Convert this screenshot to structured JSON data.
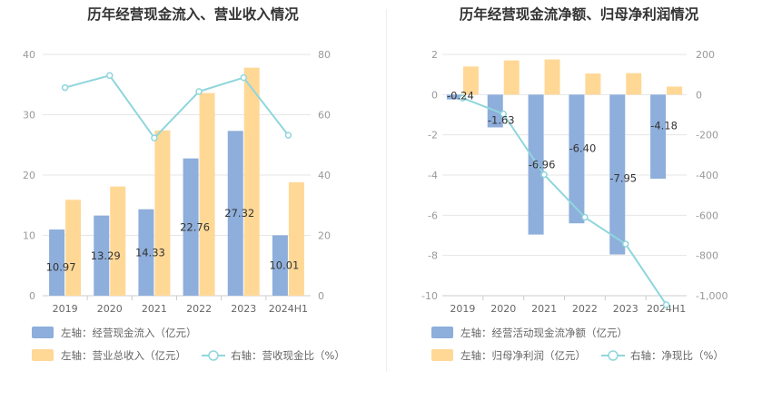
{
  "chart_data": [
    {
      "type": "bar",
      "title": "历年经营现金流入、营业收入情况",
      "categories": [
        "2019",
        "2020",
        "2021",
        "2022",
        "2023",
        "2024H1"
      ],
      "left_axis": {
        "ylim": [
          0,
          40
        ],
        "ticks": [
          0,
          10,
          20,
          30,
          40
        ]
      },
      "right_axis": {
        "ylim": [
          0,
          80
        ],
        "ticks": [
          0,
          20,
          40,
          60,
          80
        ]
      },
      "series": [
        {
          "name": "左轴：经营现金流入（亿元）",
          "type": "bar",
          "axis": "left",
          "color": "#8eaedb",
          "values": [
            10.97,
            13.29,
            14.33,
            22.76,
            27.32,
            10.01
          ],
          "labels": [
            "10.97",
            "13.29",
            "14.33",
            "22.76",
            "27.32",
            "10.01"
          ]
        },
        {
          "name": "左轴：营业总收入（亿元）",
          "type": "bar",
          "axis": "left",
          "color": "#ffd896",
          "values": [
            15.9,
            18.1,
            27.4,
            33.6,
            37.8,
            18.8
          ]
        },
        {
          "name": "右轴：营收现金比（%）",
          "type": "line",
          "axis": "right",
          "color": "#8fd6dc",
          "values": [
            69,
            73,
            52.3,
            67.7,
            72.3,
            53.2
          ]
        }
      ],
      "grid": true,
      "legend_position": "bottom-left"
    },
    {
      "type": "bar",
      "title": "历年经营现金流净额、归母净利润情况",
      "categories": [
        "2019",
        "2020",
        "2021",
        "2022",
        "2023",
        "2024H1"
      ],
      "left_axis": {
        "ylim": [
          -10,
          2
        ],
        "ticks": [
          -10,
          -8,
          -6,
          -4,
          -2,
          0,
          2
        ]
      },
      "right_axis": {
        "ylim": [
          -1000,
          200
        ],
        "ticks": [
          -1000,
          -800,
          -600,
          -400,
          -200,
          0,
          200
        ],
        "tick_labels": [
          "-1,000",
          "-800",
          "-600",
          "-400",
          "-200",
          "0",
          "200"
        ]
      },
      "series": [
        {
          "name": "左轴：经营活动现金流净额（亿元）",
          "type": "bar",
          "axis": "left",
          "color": "#8eaedb",
          "values": [
            -0.24,
            -1.63,
            -6.96,
            -6.4,
            -7.95,
            -4.18
          ],
          "labels": [
            "-0.24",
            "-1.63",
            "-6.96",
            "-6.40",
            "-7.95",
            "-4.18"
          ]
        },
        {
          "name": "左轴：归母净利润（亿元）",
          "type": "bar",
          "axis": "left",
          "color": "#ffd896",
          "values": [
            1.4,
            1.7,
            1.75,
            1.05,
            1.07,
            0.4
          ]
        },
        {
          "name": "右轴：净现比（%）",
          "type": "line",
          "axis": "right",
          "color": "#8fd6dc",
          "values": [
            -17,
            -96,
            -398,
            -610,
            -743,
            -1045
          ]
        }
      ],
      "grid": true,
      "legend_position": "bottom-left"
    }
  ]
}
